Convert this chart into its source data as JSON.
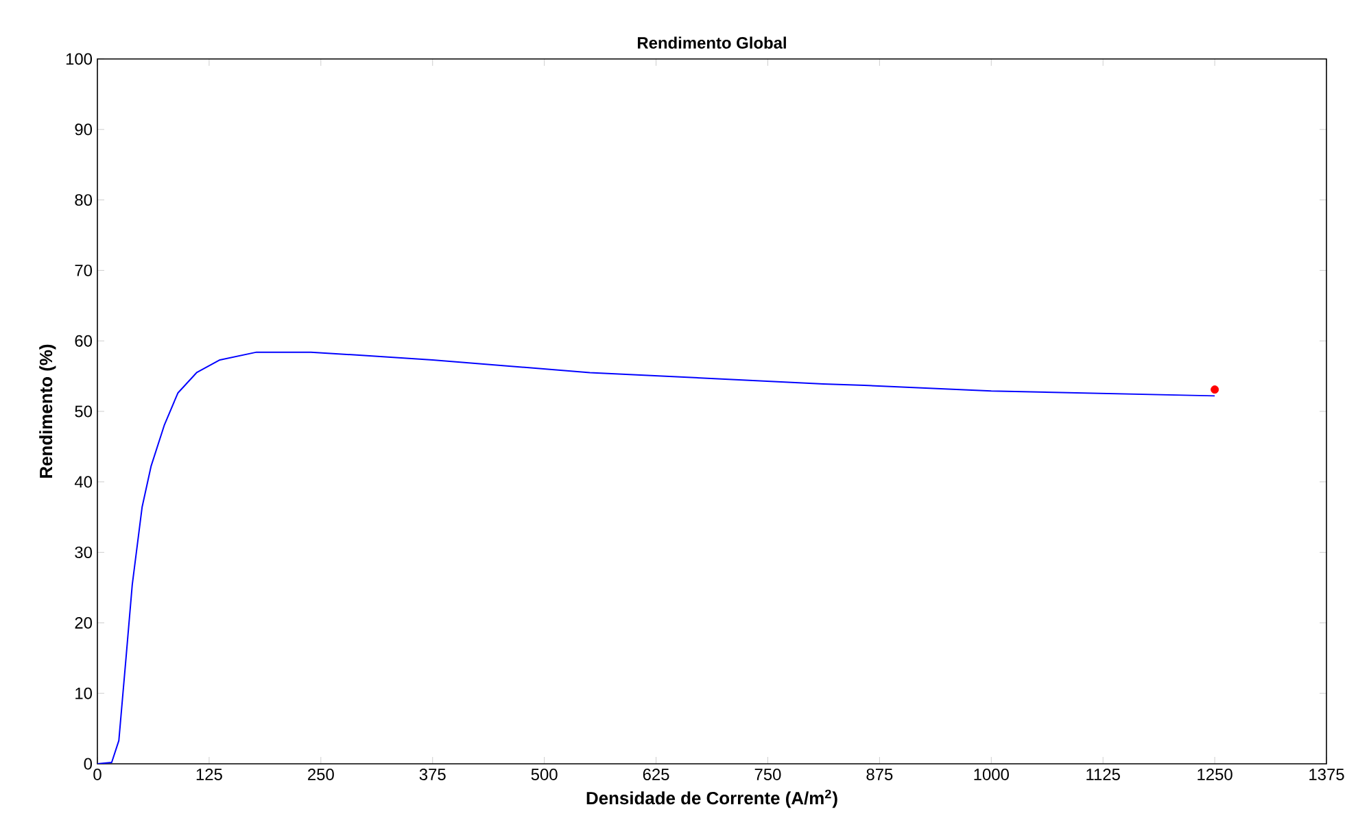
{
  "chart_data": {
    "type": "line",
    "title": "Rendimento Global",
    "xlabel": "Densidade de Corrente (A/m$^{2}$)",
    "ylabel": "Rendimento (%)",
    "xlim": [
      0,
      1375
    ],
    "ylim": [
      0,
      100
    ],
    "xticks": [
      0,
      125,
      250,
      375,
      500,
      625,
      750,
      875,
      1000,
      1125,
      1250,
      1375
    ],
    "yticks": [
      0,
      10,
      20,
      30,
      40,
      50,
      60,
      70,
      80,
      90,
      100
    ],
    "grid": false,
    "series": [
      {
        "color": "#0000ff",
        "marker": "none",
        "x": [
          0,
          16,
          24,
          32,
          39,
          50,
          60,
          75,
          90,
          111,
          137,
          178,
          239,
          290,
          375,
          551,
          812,
          858,
          1000,
          1250
        ],
        "values": [
          0,
          0.2,
          3.3,
          15,
          25.4,
          36.4,
          42.2,
          48.1,
          52.6,
          55.5,
          57.3,
          58.4,
          58.4,
          58.0,
          57.3,
          55.5,
          53.9,
          53.7,
          52.9,
          52.2
        ]
      },
      {
        "type": "scatter",
        "color": "#ff0000",
        "marker": "circle",
        "x": [
          1250
        ],
        "values": [
          53.1
        ]
      }
    ]
  }
}
